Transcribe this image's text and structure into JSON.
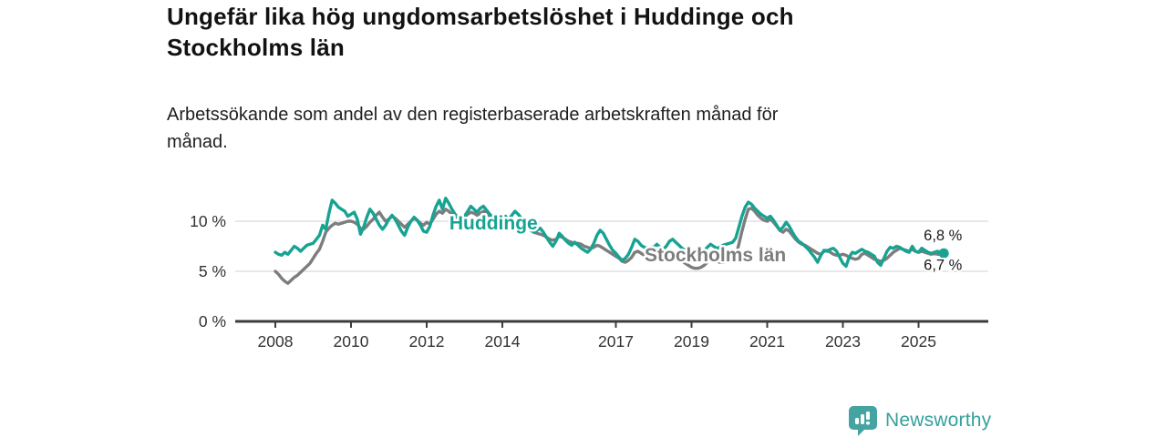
{
  "header": {
    "title": "Ungefär lika hög ungdomsarbetslöshet i Huddinge och Stockholms län",
    "title_lines": [
      "Ungefär lika hög ungdomsarbetslöshet i Huddinge och",
      "Stockholms län"
    ],
    "subtitle": "Arbetssökande som andel av den registerbaserade arbetskraften månad för månad.",
    "subtitle_lines": [
      "Arbetssökande som andel av den registerbaserade arbetskraften månad för",
      "månad."
    ]
  },
  "footer": {
    "brand": "Newsworthy",
    "logo_icon": "bar-chart-speech-bubble-icon",
    "brand_color": "#35a09d"
  },
  "chart_data": {
    "type": "line",
    "title": "",
    "xlabel": "",
    "ylabel": "",
    "x_unit": "months",
    "x_start_year": 2008,
    "x_end": "2025-09",
    "x_ticks": [
      2008,
      2010,
      2012,
      2014,
      2017,
      2019,
      2021,
      2023,
      2025
    ],
    "y_ticks": [
      {
        "value": 0,
        "label": "0 %"
      },
      {
        "value": 5,
        "label": "5 %"
      },
      {
        "value": 10,
        "label": "10 %"
      }
    ],
    "ylim": [
      0,
      13.5
    ],
    "grid": true,
    "colors": {
      "huddinge": "#17a392",
      "stockholm": "#7d7d7d",
      "axis": "#3c3c3c",
      "gridline": "#dbdbdb",
      "tick_text": "#333333",
      "end_label_text": "#1a1a1a"
    },
    "series": [
      {
        "name": "Stockholms län",
        "color": "#7d7d7d",
        "end_label": "6,7 %",
        "end_label_side": "below",
        "end_dot": false,
        "label_at": {
          "year": 2017.76,
          "value": 6.0
        },
        "values": [
          5.0,
          4.7,
          4.3,
          4.0,
          3.8,
          4.1,
          4.4,
          4.6,
          4.9,
          5.2,
          5.5,
          5.8,
          6.3,
          6.8,
          7.2,
          8.0,
          8.9,
          9.3,
          9.6,
          9.8,
          9.7,
          9.8,
          9.9,
          10.0,
          10.0,
          9.9,
          9.7,
          9.3,
          9.2,
          9.5,
          9.9,
          10.2,
          10.6,
          10.9,
          10.4,
          10.0,
          10.2,
          10.5,
          10.3,
          10.0,
          9.7,
          9.4,
          9.7,
          10.0,
          10.3,
          10.1,
          9.8,
          9.6,
          9.9,
          9.7,
          10.2,
          10.7,
          11.0,
          10.8,
          11.2,
          11.0,
          10.7,
          10.5,
          10.3,
          10.2,
          10.4,
          10.7,
          10.9,
          10.8,
          10.6,
          10.8,
          11.0,
          10.8,
          10.5,
          10.3,
          10.1,
          10.0,
          10.1,
          10.0,
          9.8,
          9.6,
          9.5,
          9.6,
          9.8,
          9.6,
          9.3,
          9.1,
          8.9,
          8.8,
          8.7,
          8.6,
          8.4,
          8.2,
          8.1,
          8.2,
          8.5,
          8.4,
          8.2,
          8.0,
          7.9,
          7.8,
          7.8,
          7.7,
          7.5,
          7.4,
          7.3,
          7.4,
          7.6,
          7.5,
          7.3,
          7.1,
          6.9,
          6.7,
          6.5,
          6.3,
          6.0,
          5.9,
          6.1,
          6.4,
          6.9,
          7.0,
          6.8,
          6.6,
          6.5,
          6.4,
          6.5,
          6.4,
          6.2,
          6.1,
          6.0,
          6.2,
          6.6,
          6.5,
          6.3,
          6.0,
          5.8,
          5.6,
          5.4,
          5.3,
          5.3,
          5.4,
          5.6,
          5.9,
          6.3,
          6.2,
          6.0,
          5.9,
          5.9,
          6.0,
          6.1,
          6.2,
          6.5,
          7.7,
          9.0,
          10.2,
          11.2,
          11.3,
          11.0,
          10.6,
          10.3,
          10.1,
          10.0,
          10.2,
          9.9,
          9.5,
          9.1,
          8.9,
          9.2,
          9.0,
          8.6,
          8.2,
          7.9,
          7.7,
          7.6,
          7.4,
          7.2,
          7.0,
          6.8,
          6.7,
          7.0,
          7.1,
          6.9,
          6.7,
          6.6,
          6.6,
          6.7,
          6.6,
          6.4,
          6.3,
          6.2,
          6.3,
          6.7,
          6.8,
          6.6,
          6.4,
          6.2,
          6.1,
          6.0,
          6.1,
          6.3,
          6.6,
          6.9,
          7.1,
          7.3,
          7.2,
          7.1,
          7.0,
          7.2,
          7.0,
          6.9,
          7.0,
          6.9,
          6.8,
          6.7,
          6.8,
          6.7,
          6.7,
          6.7
        ]
      },
      {
        "name": "Huddinge",
        "color": "#17a392",
        "end_label": "6,8 %",
        "end_label_side": "above",
        "end_dot": true,
        "label_at": {
          "year": 2012.6,
          "value": 9.2
        },
        "values": [
          6.9,
          6.7,
          6.6,
          6.9,
          6.7,
          7.1,
          7.5,
          7.3,
          7.0,
          7.3,
          7.6,
          7.7,
          7.8,
          8.2,
          8.6,
          9.6,
          9.2,
          10.8,
          12.1,
          11.8,
          11.4,
          11.2,
          11.0,
          10.5,
          10.7,
          10.9,
          10.2,
          8.7,
          9.4,
          10.4,
          11.2,
          10.8,
          10.2,
          9.6,
          9.2,
          9.6,
          10.2,
          10.6,
          10.2,
          9.6,
          9.0,
          8.6,
          9.4,
          10.0,
          10.4,
          10.1,
          9.6,
          9.0,
          8.9,
          9.5,
          10.6,
          11.5,
          12.1,
          11.2,
          12.3,
          11.8,
          11.2,
          10.7,
          10.4,
          10.2,
          10.5,
          11.0,
          11.5,
          11.2,
          10.9,
          11.3,
          11.5,
          11.1,
          10.7,
          10.4,
          10.6,
          10.3,
          10.2,
          10.5,
          10.1,
          10.6,
          11.0,
          10.7,
          10.3,
          9.9,
          9.5,
          9.1,
          8.9,
          9.1,
          9.3,
          8.9,
          8.4,
          7.9,
          7.5,
          8.0,
          8.8,
          8.5,
          8.1,
          7.8,
          7.6,
          7.9,
          7.6,
          7.3,
          7.1,
          6.9,
          7.2,
          7.8,
          8.6,
          9.1,
          8.8,
          8.2,
          7.6,
          7.1,
          6.8,
          6.4,
          6.1,
          6.3,
          6.7,
          7.4,
          8.2,
          8.0,
          7.6,
          7.4,
          7.3,
          7.4,
          7.4,
          7.7,
          7.4,
          7.2,
          7.5,
          8.0,
          8.2,
          7.9,
          7.6,
          7.3,
          7.1,
          7.2,
          7.0,
          6.8,
          6.6,
          6.8,
          7.0,
          7.4,
          7.7,
          7.5,
          7.3,
          7.4,
          7.6,
          7.7,
          7.8,
          7.9,
          8.3,
          9.4,
          10.5,
          11.4,
          11.9,
          11.7,
          11.3,
          11.0,
          10.7,
          10.5,
          10.3,
          10.5,
          10.1,
          9.6,
          9.1,
          9.4,
          9.9,
          9.5,
          8.9,
          8.4,
          8.0,
          7.8,
          7.5,
          7.2,
          6.8,
          6.4,
          5.9,
          6.6,
          7.1,
          7.0,
          7.2,
          7.3,
          7.0,
          6.4,
          5.8,
          5.5,
          6.4,
          6.9,
          6.8,
          7.0,
          7.2,
          7.0,
          6.9,
          6.7,
          6.5,
          5.9,
          5.6,
          6.3,
          7.0,
          7.4,
          7.3,
          7.5,
          7.4,
          7.2,
          7.0,
          6.9,
          7.5,
          7.0,
          6.9,
          7.3,
          7.1,
          6.9,
          6.8,
          6.9,
          7.0,
          6.9,
          6.8
        ]
      }
    ]
  }
}
